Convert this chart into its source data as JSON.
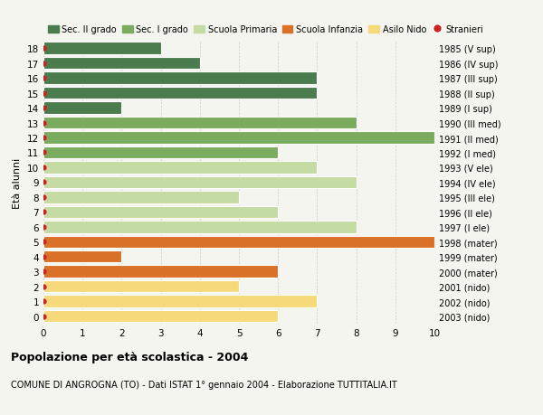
{
  "ages": [
    18,
    17,
    16,
    15,
    14,
    13,
    12,
    11,
    10,
    9,
    8,
    7,
    6,
    5,
    4,
    3,
    2,
    1,
    0
  ],
  "anni_nascita": [
    "1985 (V sup)",
    "1986 (IV sup)",
    "1987 (III sup)",
    "1988 (II sup)",
    "1989 (I sup)",
    "1990 (III med)",
    "1991 (II med)",
    "1992 (I med)",
    "1993 (V ele)",
    "1994 (IV ele)",
    "1995 (III ele)",
    "1996 (II ele)",
    "1997 (I ele)",
    "1998 (mater)",
    "1999 (mater)",
    "2000 (mater)",
    "2001 (nido)",
    "2002 (nido)",
    "2003 (nido)"
  ],
  "values": [
    3,
    4,
    7,
    7,
    2,
    8,
    10,
    6,
    7,
    8,
    5,
    6,
    8,
    10,
    2,
    6,
    5,
    7,
    6
  ],
  "colors": [
    "#4a7c4e",
    "#4a7c4e",
    "#4a7c4e",
    "#4a7c4e",
    "#4a7c4e",
    "#7aab5e",
    "#7aab5e",
    "#7aab5e",
    "#c5dba4",
    "#c5dba4",
    "#c5dba4",
    "#c5dba4",
    "#c5dba4",
    "#d97228",
    "#d97228",
    "#d97228",
    "#f5d97a",
    "#f5d97a",
    "#f5d97a"
  ],
  "legend_labels": [
    "Sec. II grado",
    "Sec. I grado",
    "Scuola Primaria",
    "Scuola Infanzia",
    "Asilo Nido",
    "Stranieri"
  ],
  "legend_colors": [
    "#4a7c4e",
    "#7aab5e",
    "#c5dba4",
    "#d97228",
    "#f5d97a",
    "#cc2222"
  ],
  "ylabel_left": "Età alunni",
  "title": "Popolazione per età scolastica - 2004",
  "subtitle": "COMUNE DI ANGROGNA (TO) - Dati ISTAT 1° gennaio 2004 - Elaborazione TUTTITALIA.IT",
  "xlim": [
    0,
    10
  ],
  "bg_color": "#f5f5f0",
  "stranieri_color": "#cc2222",
  "grid_color": "#cccccc"
}
